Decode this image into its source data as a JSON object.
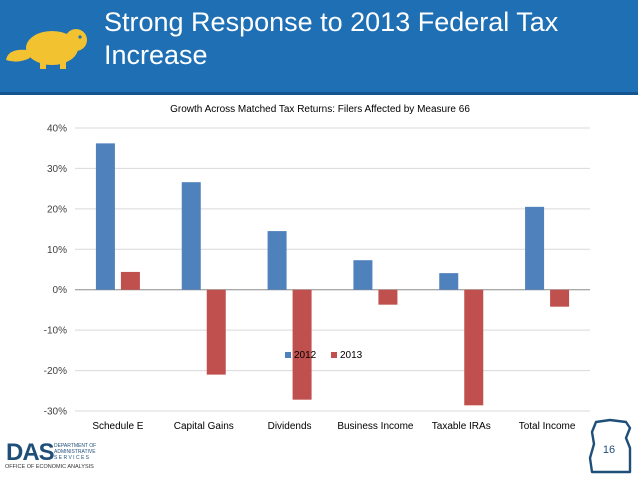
{
  "slide": {
    "title": "Strong Response to 2013 Federal Tax Increase",
    "page_number": "16"
  },
  "footer": {
    "org_abbrev": "DAS",
    "org_line1": "DEPARTMENT OF",
    "org_line2": "ADMINISTRATIVE",
    "org_line3": "S E R V I C E S",
    "office": "OFFICE OF ECONOMIC ANALYSIS"
  },
  "colors": {
    "header": "#1f6fb5",
    "series_2012": "#4f81bd",
    "series_2013": "#c0504d"
  },
  "chart_data": {
    "type": "bar",
    "title": "Growth Across Matched Tax Returns:  Filers Affected by Measure 66",
    "categories": [
      "Schedule E",
      "Capital Gains",
      "Dividends",
      "Business Income",
      "Taxable IRAs",
      "Total Income"
    ],
    "series": [
      {
        "name": "2012",
        "values": [
          36.2,
          26.6,
          14.5,
          7.3,
          4.1,
          20.5
        ]
      },
      {
        "name": "2013",
        "values": [
          4.4,
          -21.0,
          -27.2,
          -3.7,
          -28.6,
          -4.2
        ]
      }
    ],
    "ylim": [
      -30,
      40
    ],
    "yticks": [
      "-30%",
      "-20%",
      "-10%",
      "0%",
      "10%",
      "20%",
      "30%",
      "40%"
    ],
    "xlabel": "",
    "ylabel": "",
    "legend_position": "bottom"
  }
}
